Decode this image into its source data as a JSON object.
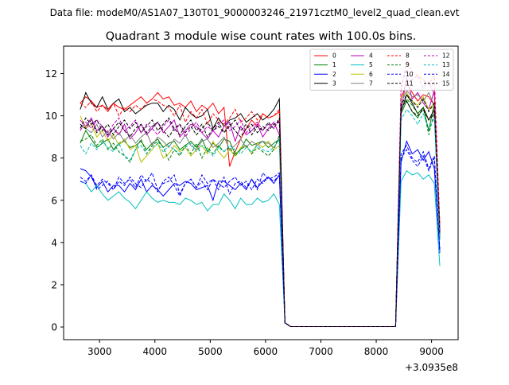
{
  "chart_data": {
    "type": "line",
    "suptitle": "Data file: modeM0/AS1A07_130T01_9000003246_21971cztM0_level2_quad_clean.evt",
    "title": "Quadrant 3 module wise count rates with 100.0s bins.",
    "xlabel": "",
    "ylabel": "",
    "x_offset_label": "+3.0935e8",
    "xlim": [
      2350,
      9480
    ],
    "ylim": [
      -0.6,
      13.3
    ],
    "xticks": [
      3000,
      4000,
      5000,
      6000,
      7000,
      8000,
      9000
    ],
    "yticks": [
      0,
      2,
      4,
      6,
      8,
      10,
      12
    ],
    "grid": false,
    "legend_placement": "top-right",
    "legend_columns": 4,
    "x": [
      2650,
      2750,
      2850,
      2950,
      3050,
      3150,
      3250,
      3350,
      3450,
      3550,
      3650,
      3750,
      3850,
      3950,
      4050,
      4150,
      4250,
      4350,
      4450,
      4550,
      4650,
      4750,
      4850,
      4950,
      5050,
      5150,
      5250,
      5350,
      5450,
      5550,
      5650,
      5750,
      5850,
      5950,
      6050,
      6150,
      6250,
      6350,
      6450,
      6550,
      6650,
      6750,
      6850,
      6950,
      7050,
      7150,
      7250,
      7350,
      7450,
      7550,
      7650,
      7750,
      7850,
      7950,
      8050,
      8150,
      8250,
      8350,
      8450,
      8550,
      8650,
      8750,
      8850,
      8950,
      9050,
      9150
    ],
    "series": [
      {
        "name": "0",
        "color": "#ff0000",
        "dash": false,
        "values": [
          10.6,
          10.9,
          10.7,
          10.4,
          10.5,
          10.2,
          10.6,
          10.4,
          10.3,
          10.5,
          10.7,
          10.9,
          10.6,
          10.8,
          11.1,
          10.8,
          10.9,
          10.5,
          10.6,
          10.4,
          10.7,
          10.2,
          10.5,
          10.3,
          10.6,
          10.1,
          10.4,
          7.6,
          8.3,
          8.9,
          9.4,
          9.8,
          9.5,
          10.1,
          9.9,
          10.0,
          10.2,
          0.2,
          0.02,
          0.02,
          0.02,
          0.02,
          0.02,
          0.02,
          0.02,
          0.02,
          0.02,
          0.02,
          0.02,
          0.02,
          0.02,
          0.02,
          0.02,
          0.02,
          0.02,
          0.02,
          0.02,
          0.02,
          10.8,
          11.6,
          11.1,
          10.7,
          11.0,
          10.9,
          10.5,
          4.8
        ]
      },
      {
        "name": "1",
        "color": "#008000",
        "dash": false,
        "values": [
          8.7,
          9.3,
          8.9,
          8.5,
          8.7,
          8.9,
          8.4,
          8.7,
          8.8,
          8.5,
          8.6,
          8.8,
          8.4,
          8.7,
          8.9,
          8.5,
          8.7,
          8.8,
          8.4,
          8.6,
          8.8,
          8.5,
          8.9,
          8.3,
          8.7,
          8.5,
          8.9,
          8.8,
          8.2,
          8.4,
          8.9,
          8.6,
          8.7,
          8.8,
          8.5,
          8.7,
          8.9,
          0.2,
          0.02,
          0.02,
          0.02,
          0.02,
          0.02,
          0.02,
          0.02,
          0.02,
          0.02,
          0.02,
          0.02,
          0.02,
          0.02,
          0.02,
          0.02,
          0.02,
          0.02,
          0.02,
          0.02,
          0.02,
          10.1,
          10.7,
          10.2,
          9.9,
          10.4,
          9.3,
          10.6,
          4.2
        ]
      },
      {
        "name": "2",
        "color": "#0000ff",
        "dash": false,
        "values": [
          7.5,
          7.4,
          7.1,
          6.6,
          6.9,
          6.4,
          6.7,
          6.7,
          6.4,
          6.8,
          6.5,
          7.0,
          6.4,
          6.7,
          6.5,
          6.2,
          6.5,
          6.8,
          6.7,
          6.9,
          6.8,
          6.5,
          6.6,
          6.7,
          6.0,
          6.9,
          6.9,
          6.7,
          6.5,
          6.8,
          6.5,
          7.0,
          6.6,
          6.9,
          7.1,
          6.8,
          7.2,
          0.2,
          0.02,
          0.02,
          0.02,
          0.02,
          0.02,
          0.02,
          0.02,
          0.02,
          0.02,
          0.02,
          0.02,
          0.02,
          0.02,
          0.02,
          0.02,
          0.02,
          0.02,
          0.02,
          0.02,
          0.02,
          7.8,
          8.8,
          8.2,
          8.4,
          7.9,
          8.3,
          7.5,
          3.6
        ]
      },
      {
        "name": "3",
        "color": "#000000",
        "dash": false,
        "values": [
          10.3,
          11.1,
          10.6,
          10.4,
          10.9,
          10.3,
          10.6,
          10.8,
          10.2,
          10.4,
          10.1,
          10.3,
          10.5,
          10.6,
          10.6,
          10.2,
          10.5,
          10.3,
          9.8,
          10.4,
          10.1,
          9.9,
          10.0,
          10.3,
          9.4,
          9.9,
          9.5,
          9.8,
          9.9,
          10.1,
          9.7,
          9.9,
          10.1,
          9.8,
          10.0,
          10.3,
          10.8,
          0.2,
          0.02,
          0.02,
          0.02,
          0.02,
          0.02,
          0.02,
          0.02,
          0.02,
          0.02,
          0.02,
          0.02,
          0.02,
          0.02,
          0.02,
          0.02,
          0.02,
          0.02,
          0.02,
          0.02,
          0.02,
          10.2,
          11.0,
          10.6,
          10.1,
          10.4,
          9.8,
          10.3,
          4.5
        ]
      },
      {
        "name": "4",
        "color": "#bf00bf",
        "dash": false,
        "values": [
          9.8,
          9.5,
          9.9,
          9.3,
          9.5,
          9.0,
          9.4,
          9.1,
          9.6,
          8.9,
          9.2,
          9.6,
          9.1,
          9.4,
          9.7,
          9.2,
          9.5,
          9.8,
          9.0,
          9.3,
          9.6,
          9.5,
          9.2,
          8.9,
          9.3,
          9.0,
          9.5,
          9.7,
          8.8,
          9.5,
          9.1,
          9.3,
          9.6,
          9.0,
          9.4,
          9.7,
          9.1,
          0.2,
          0.02,
          0.02,
          0.02,
          0.02,
          0.02,
          0.02,
          0.02,
          0.02,
          0.02,
          0.02,
          0.02,
          0.02,
          0.02,
          0.02,
          0.02,
          0.02,
          0.02,
          0.02,
          0.02,
          0.02,
          10.3,
          11.8,
          10.8,
          11.1,
          10.6,
          10.3,
          11.2,
          4.4
        ]
      },
      {
        "name": "5",
        "color": "#00bfbf",
        "dash": false,
        "values": [
          6.9,
          6.8,
          6.4,
          6.7,
          6.3,
          6.0,
          6.2,
          6.4,
          6.1,
          5.9,
          5.6,
          6.0,
          6.4,
          6.1,
          5.9,
          6.0,
          5.9,
          5.9,
          5.8,
          6.1,
          6.0,
          5.8,
          5.9,
          5.5,
          5.8,
          5.8,
          6.3,
          6.0,
          5.6,
          6.1,
          5.8,
          5.8,
          6.1,
          5.9,
          6.0,
          6.3,
          5.8,
          0.2,
          0.02,
          0.02,
          0.02,
          0.02,
          0.02,
          0.02,
          0.02,
          0.02,
          0.02,
          0.02,
          0.02,
          0.02,
          0.02,
          0.02,
          0.02,
          0.02,
          0.02,
          0.02,
          0.02,
          0.02,
          6.9,
          7.4,
          7.2,
          7.3,
          7.0,
          7.2,
          6.8,
          2.9
        ]
      },
      {
        "name": "6",
        "color": "#bfbf00",
        "dash": false,
        "values": [
          10.0,
          9.4,
          9.6,
          9.0,
          9.3,
          8.8,
          9.1,
          8.6,
          8.9,
          8.4,
          8.6,
          7.8,
          8.1,
          8.4,
          8.7,
          8.0,
          8.2,
          8.6,
          8.3,
          8.5,
          8.1,
          8.4,
          8.6,
          8.2,
          8.8,
          8.3,
          8.0,
          8.4,
          8.1,
          8.5,
          8.6,
          8.2,
          8.7,
          8.5,
          8.8,
          8.4,
          8.6,
          0.2,
          0.02,
          0.02,
          0.02,
          0.02,
          0.02,
          0.02,
          0.02,
          0.02,
          0.02,
          0.02,
          0.02,
          0.02,
          0.02,
          0.02,
          0.02,
          0.02,
          0.02,
          0.02,
          0.02,
          0.02,
          10.9,
          11.1,
          10.7,
          10.5,
          10.9,
          10.3,
          10.6,
          4.6
        ]
      },
      {
        "name": "7",
        "color": "#808080",
        "dash": false,
        "values": [
          9.5,
          9.4,
          9.2,
          9.6,
          9.0,
          9.3,
          8.9,
          9.2,
          8.8,
          9.1,
          8.7,
          9.0,
          9.2,
          8.6,
          9.0,
          8.8,
          8.5,
          8.9,
          8.7,
          9.1,
          8.6,
          8.4,
          8.8,
          8.9,
          8.5,
          8.7,
          9.0,
          8.4,
          8.6,
          8.9,
          8.5,
          8.8,
          8.6,
          8.8,
          8.7,
          8.5,
          8.9,
          0.2,
          0.02,
          0.02,
          0.02,
          0.02,
          0.02,
          0.02,
          0.02,
          0.02,
          0.02,
          0.02,
          0.02,
          0.02,
          0.02,
          0.02,
          0.02,
          0.02,
          0.02,
          0.02,
          0.02,
          0.02,
          10.6,
          11.2,
          10.9,
          11.0,
          10.7,
          11.1,
          10.5,
          4.7
        ]
      },
      {
        "name": "8",
        "color": "#ff0000",
        "dash": true,
        "values": [
          10.6,
          10.4,
          10.7,
          10.2,
          10.5,
          10.3,
          10.6,
          10.0,
          10.4,
          10.2,
          10.5,
          10.3,
          10.6,
          10.8,
          10.7,
          10.5,
          10.4,
          10.0,
          10.5,
          9.7,
          10.2,
          9.9,
          10.3,
          9.6,
          10.1,
          9.8,
          9.6,
          9.9,
          10.3,
          9.7,
          9.9,
          10.2,
          9.8,
          10.1,
          9.9,
          10.0,
          10.3,
          0.2,
          0.02,
          0.02,
          0.02,
          0.02,
          0.02,
          0.02,
          0.02,
          0.02,
          0.02,
          0.02,
          0.02,
          0.02,
          0.02,
          0.02,
          0.02,
          0.02,
          0.02,
          0.02,
          0.02,
          0.02,
          11.2,
          12.6,
          12.1,
          11.9,
          11.7,
          11.5,
          11.9,
          4.9
        ]
      },
      {
        "name": "9",
        "color": "#008000",
        "dash": true,
        "values": [
          8.8,
          8.9,
          9.1,
          8.6,
          8.9,
          8.4,
          8.7,
          8.3,
          8.1,
          7.8,
          8.4,
          8.9,
          8.2,
          8.6,
          8.8,
          8.5,
          7.9,
          8.4,
          8.1,
          8.6,
          8.2,
          8.7,
          8.0,
          8.5,
          8.2,
          8.6,
          8.3,
          8.5,
          8.1,
          8.4,
          8.6,
          8.2,
          8.5,
          8.3,
          8.1,
          8.4,
          9.1,
          0.2,
          0.02,
          0.02,
          0.02,
          0.02,
          0.02,
          0.02,
          0.02,
          0.02,
          0.02,
          0.02,
          0.02,
          0.02,
          0.02,
          0.02,
          0.02,
          0.02,
          0.02,
          0.02,
          0.02,
          0.02,
          10.3,
          10.8,
          10.5,
          10.1,
          10.4,
          9.1,
          10.2,
          4.3
        ]
      },
      {
        "name": "10",
        "color": "#0000ff",
        "dash": true,
        "values": [
          6.9,
          6.8,
          7.2,
          6.5,
          6.7,
          6.9,
          6.5,
          7.1,
          6.8,
          7.0,
          6.6,
          7.2,
          6.9,
          7.3,
          6.5,
          6.8,
          6.9,
          7.2,
          6.3,
          6.8,
          7.0,
          6.6,
          7.2,
          6.8,
          7.0,
          6.5,
          7.1,
          6.3,
          6.8,
          6.9,
          6.6,
          7.0,
          6.5,
          7.3,
          7.0,
          7.1,
          7.3,
          0.2,
          0.02,
          0.02,
          0.02,
          0.02,
          0.02,
          0.02,
          0.02,
          0.02,
          0.02,
          0.02,
          0.02,
          0.02,
          0.02,
          0.02,
          0.02,
          0.02,
          0.02,
          0.02,
          0.02,
          0.02,
          8.2,
          8.6,
          8.0,
          7.8,
          8.3,
          7.5,
          8.1,
          3.7
        ]
      },
      {
        "name": "11",
        "color": "#000000",
        "dash": true,
        "values": [
          9.4,
          9.9,
          9.6,
          9.8,
          9.3,
          9.6,
          9.1,
          9.5,
          9.8,
          9.4,
          9.7,
          9.2,
          9.5,
          9.8,
          9.3,
          9.6,
          9.9,
          9.4,
          9.1,
          9.5,
          9.8,
          9.3,
          9.6,
          9.0,
          9.4,
          9.7,
          9.2,
          9.5,
          9.8,
          9.3,
          9.6,
          9.1,
          9.5,
          9.3,
          9.7,
          9.4,
          9.9,
          0.2,
          0.02,
          0.02,
          0.02,
          0.02,
          0.02,
          0.02,
          0.02,
          0.02,
          0.02,
          0.02,
          0.02,
          0.02,
          0.02,
          0.02,
          0.02,
          0.02,
          0.02,
          0.02,
          0.02,
          0.02,
          10.4,
          10.7,
          10.2,
          10.0,
          10.3,
          9.8,
          10.1,
          4.5
        ]
      },
      {
        "name": "12",
        "color": "#bf00bf",
        "dash": true,
        "values": [
          9.3,
          9.7,
          9.4,
          9.8,
          9.5,
          9.2,
          9.6,
          9.9,
          9.3,
          9.5,
          9.8,
          9.2,
          9.6,
          9.4,
          9.1,
          9.5,
          9.8,
          9.3,
          9.6,
          9.0,
          9.4,
          9.7,
          9.2,
          9.5,
          9.3,
          9.6,
          9.8,
          9.3,
          9.5,
          9.8,
          9.2,
          9.5,
          9.7,
          9.3,
          9.6,
          9.4,
          9.8,
          0.2,
          0.02,
          0.02,
          0.02,
          0.02,
          0.02,
          0.02,
          0.02,
          0.02,
          0.02,
          0.02,
          0.02,
          0.02,
          0.02,
          0.02,
          0.02,
          0.02,
          0.02,
          0.02,
          0.02,
          0.02,
          11.4,
          12.2,
          11.7,
          11.9,
          11.3,
          11.6,
          11.0,
          4.6
        ]
      },
      {
        "name": "13",
        "color": "#00bfbf",
        "dash": true,
        "values": [
          8.6,
          8.2,
          8.7,
          8.4,
          8.8,
          8.5,
          8.3,
          8.7,
          8.1,
          7.9,
          8.4,
          8.6,
          8.2,
          8.5,
          8.7,
          8.3,
          8.6,
          8.4,
          8.2,
          8.5,
          8.7,
          8.3,
          8.6,
          8.4,
          8.1,
          8.5,
          8.3,
          8.6,
          8.4,
          8.2,
          8.5,
          8.3,
          8.6,
          8.4,
          8.3,
          8.5,
          8.9,
          0.2,
          0.02,
          0.02,
          0.02,
          0.02,
          0.02,
          0.02,
          0.02,
          0.02,
          0.02,
          0.02,
          0.02,
          0.02,
          0.02,
          0.02,
          0.02,
          0.02,
          0.02,
          0.02,
          0.02,
          0.02,
          9.8,
          10.3,
          10.0,
          9.6,
          10.1,
          9.4,
          9.9,
          4.1
        ]
      },
      {
        "name": "14",
        "color": "#0000ff",
        "dash": true,
        "values": [
          7.1,
          6.9,
          7.2,
          6.7,
          7.0,
          6.8,
          6.5,
          6.9,
          6.7,
          7.1,
          6.8,
          6.6,
          7.0,
          6.8,
          6.4,
          6.9,
          7.1,
          6.7,
          6.2,
          6.8,
          7.0,
          6.6,
          6.9,
          6.5,
          7.0,
          6.8,
          6.6,
          6.9,
          7.1,
          6.7,
          6.9,
          6.5,
          7.0,
          6.8,
          7.1,
          6.9,
          7.2,
          0.2,
          0.02,
          0.02,
          0.02,
          0.02,
          0.02,
          0.02,
          0.02,
          0.02,
          0.02,
          0.02,
          0.02,
          0.02,
          0.02,
          0.02,
          0.02,
          0.02,
          0.02,
          0.02,
          0.02,
          0.02,
          8.0,
          8.4,
          7.9,
          7.6,
          8.1,
          7.4,
          8.0,
          3.5
        ]
      },
      {
        "name": "15",
        "color": "#000000",
        "dash": true,
        "values": [
          9.6,
          9.4,
          9.8,
          9.2,
          9.5,
          9.1,
          9.4,
          9.7,
          9.3,
          9.0,
          9.4,
          9.6,
          9.2,
          9.5,
          9.7,
          9.3,
          9.0,
          9.4,
          9.6,
          9.2,
          9.5,
          9.1,
          9.4,
          9.7,
          9.3,
          9.5,
          9.2,
          9.6,
          9.3,
          9.0,
          9.4,
          9.6,
          9.2,
          9.5,
          9.3,
          9.6,
          9.7,
          0.2,
          0.02,
          0.02,
          0.02,
          0.02,
          0.02,
          0.02,
          0.02,
          0.02,
          0.02,
          0.02,
          0.02,
          0.02,
          0.02,
          0.02,
          0.02,
          0.02,
          0.02,
          0.02,
          0.02,
          0.02,
          10.5,
          11.0,
          10.7,
          10.4,
          10.8,
          10.2,
          10.6,
          4.4
        ]
      }
    ]
  }
}
